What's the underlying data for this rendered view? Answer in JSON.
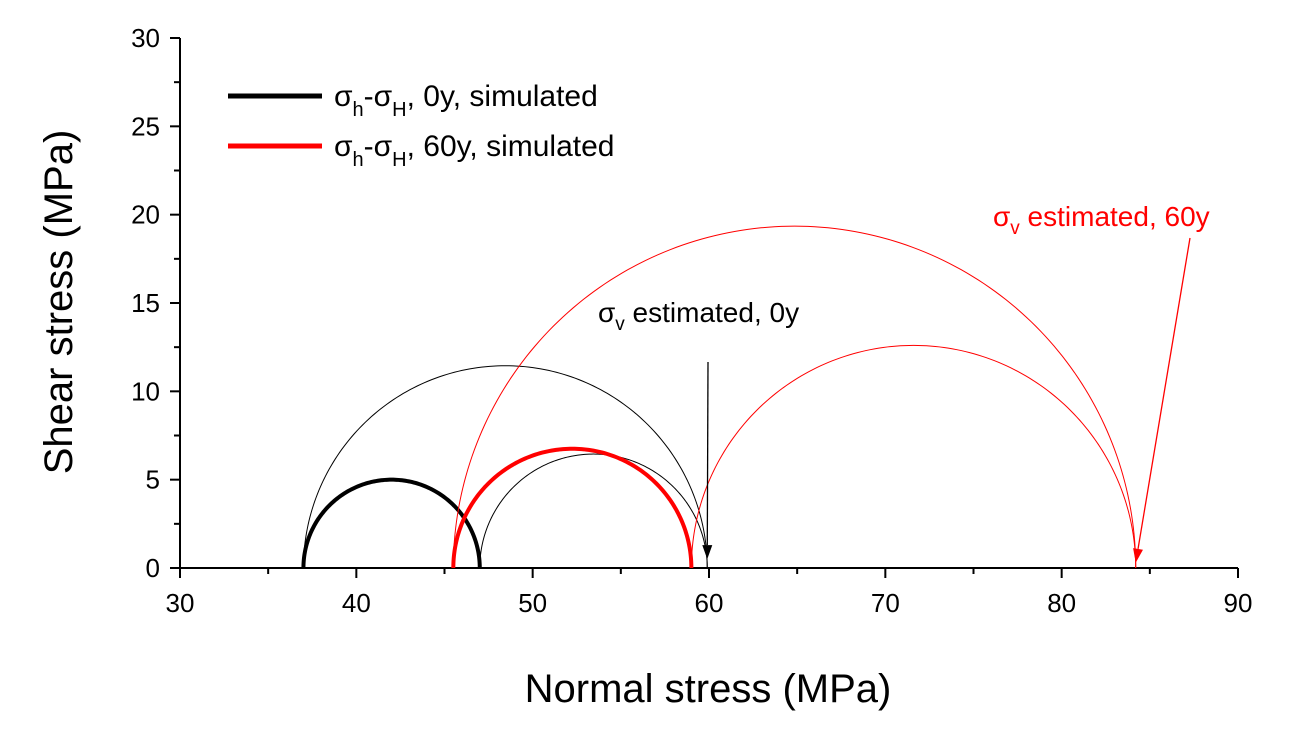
{
  "chart_data": {
    "type": "line",
    "xlabel": "Normal stress (MPa)",
    "ylabel": "Shear stress (MPa)",
    "xlim": [
      30,
      90
    ],
    "ylim": [
      0,
      30
    ],
    "xticks": [
      30,
      40,
      50,
      60,
      70,
      80,
      90
    ],
    "yticks": [
      0,
      5,
      10,
      15,
      20,
      25,
      30
    ],
    "grid": false,
    "legend_position": "top-left",
    "series": [
      {
        "name": "σh-σH, 0y, simulated",
        "name_parts": {
          "sigma": "σ",
          "sub_h": "h",
          "dash": "-",
          "sub_H": "H",
          "tail": ", 0y, simulated"
        },
        "color": "#000000",
        "circles": [
          {
            "from": 37.0,
            "to": 47.0,
            "weight": "thick"
          },
          {
            "from": 37.0,
            "to": 59.9,
            "weight": "thin"
          },
          {
            "from": 47.0,
            "to": 59.9,
            "weight": "thin"
          }
        ]
      },
      {
        "name": "σh-σH, 60y, simulated",
        "name_parts": {
          "sigma": "σ",
          "sub_h": "h",
          "dash": "-",
          "sub_H": "H",
          "tail": ", 60y, simulated"
        },
        "color": "#ff0000",
        "circles": [
          {
            "from": 45.5,
            "to": 59.0,
            "weight": "thick"
          },
          {
            "from": 45.5,
            "to": 84.2,
            "weight": "thin"
          },
          {
            "from": 59.0,
            "to": 84.2,
            "weight": "thin"
          }
        ]
      }
    ],
    "annotations": [
      {
        "sigma": "σ",
        "sub": "v",
        "text": " estimated, 0y",
        "color": "#000000",
        "target_x": 59.9,
        "target_y": 0.5
      },
      {
        "sigma": "σ",
        "sub": "v",
        "text": " estimated, 60y",
        "color": "#ff0000",
        "target_x": 84.2,
        "target_y": 0.3
      }
    ]
  }
}
